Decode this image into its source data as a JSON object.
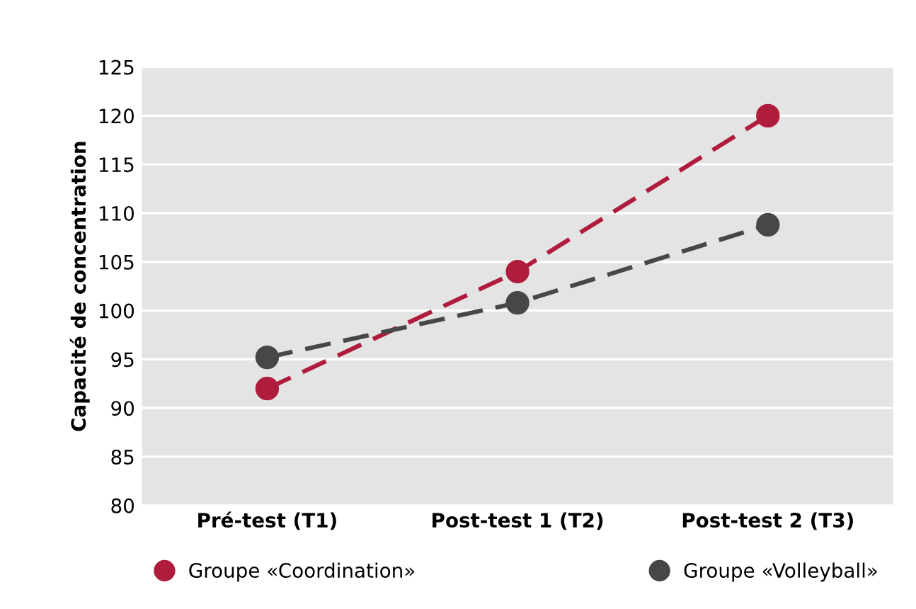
{
  "chart_data": {
    "type": "line",
    "ylabel": "Capacité de concentration",
    "categories": [
      "Pré-test (T1)",
      "Post-test 1 (T2)",
      "Post-test 2 (T3)"
    ],
    "series": [
      {
        "name": "Groupe «Coordination»",
        "color": "#b01c3c",
        "values": [
          92,
          104,
          120
        ]
      },
      {
        "name": "Groupe «Volleyball»",
        "color": "#474747",
        "values": [
          95.2,
          100.8,
          108.8
        ]
      }
    ],
    "ylim": [
      80,
      125
    ],
    "yticks": [
      80,
      85,
      90,
      95,
      100,
      105,
      110,
      115,
      120,
      125
    ],
    "grid": "y",
    "legend": "bottom",
    "marker": "circle",
    "line_style": "dashed"
  }
}
